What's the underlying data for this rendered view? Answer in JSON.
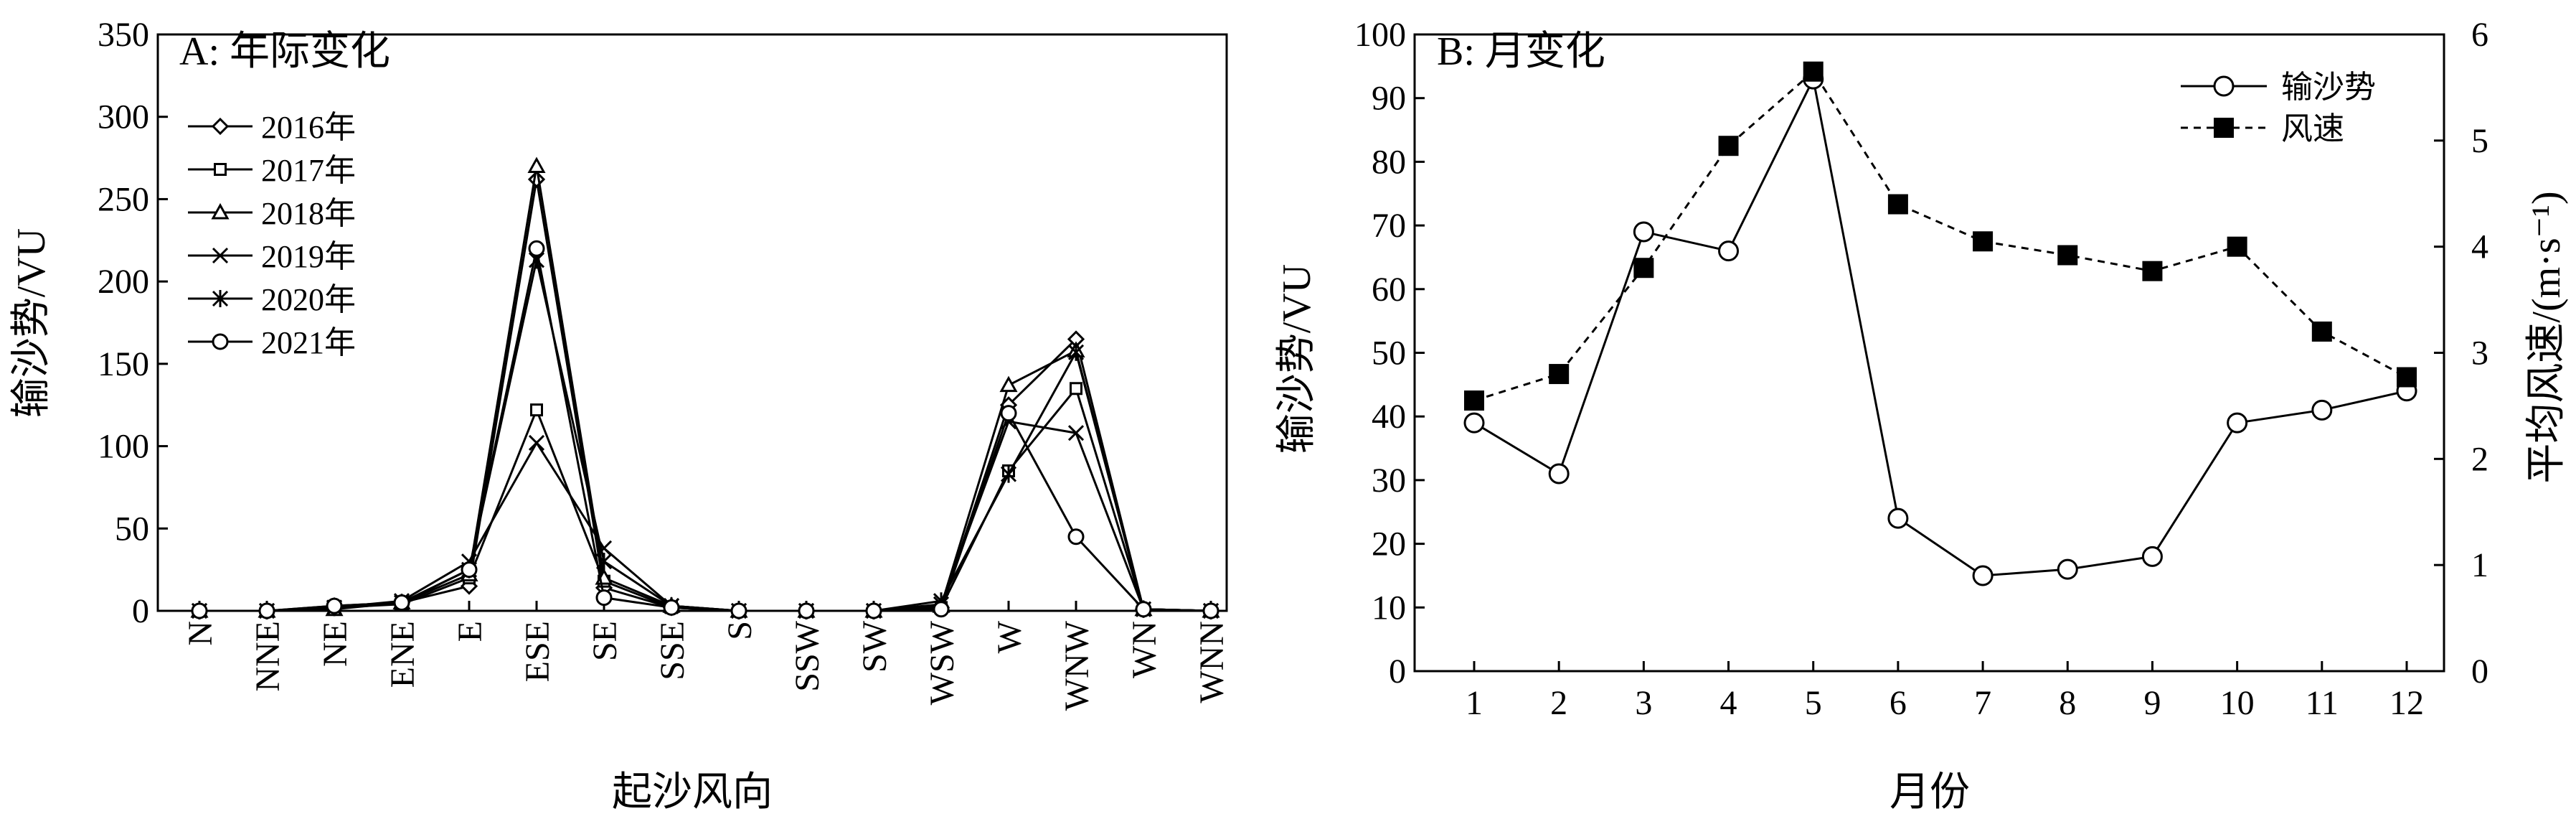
{
  "chart_data": [
    {
      "type": "line",
      "title": "A: 年际变化",
      "xlabel": "起沙风向",
      "ylabel": "输沙势/VU",
      "ylim": [
        0,
        350
      ],
      "yticks": [
        0,
        50,
        100,
        150,
        200,
        250,
        300,
        350
      ],
      "categories": [
        "N",
        "NNE",
        "NE",
        "ENE",
        "E",
        "ESE",
        "SE",
        "SSE",
        "S",
        "SSW",
        "SW",
        "WSW",
        "W",
        "WNW",
        "WN",
        "WNN"
      ],
      "legend_position": "top-left",
      "series": [
        {
          "name": "2016年",
          "marker": "diamond",
          "values": [
            0,
            0,
            3,
            5,
            15,
            262,
            14,
            2,
            0,
            0,
            0,
            2,
            125,
            165,
            1,
            0
          ]
        },
        {
          "name": "2017年",
          "marker": "square",
          "values": [
            0,
            0,
            2,
            4,
            20,
            122,
            18,
            2,
            0,
            0,
            0,
            2,
            85,
            135,
            1,
            0
          ]
        },
        {
          "name": "2018年",
          "marker": "triangle",
          "values": [
            0,
            0,
            1,
            5,
            22,
            270,
            20,
            3,
            0,
            0,
            0,
            3,
            137,
            158,
            1,
            0
          ]
        },
        {
          "name": "2019年",
          "marker": "x",
          "values": [
            0,
            0,
            2,
            6,
            30,
            102,
            38,
            3,
            0,
            0,
            0,
            4,
            115,
            108,
            1,
            0
          ]
        },
        {
          "name": "2020年",
          "marker": "asterisk",
          "values": [
            0,
            0,
            2,
            5,
            25,
            213,
            30,
            3,
            0,
            0,
            0,
            6,
            83,
            157,
            1,
            0
          ]
        },
        {
          "name": "2021年",
          "marker": "circle",
          "values": [
            0,
            0,
            3,
            5,
            25,
            220,
            8,
            2,
            0,
            0,
            0,
            1,
            120,
            45,
            1,
            0
          ]
        }
      ]
    },
    {
      "type": "line",
      "title": "B: 月变化",
      "xlabel": "月份",
      "ylabel": "输沙势/VU",
      "y2label": "平均风速/(m·s⁻¹)",
      "ylim": [
        0,
        100
      ],
      "yticks": [
        0,
        10,
        20,
        30,
        40,
        50,
        60,
        70,
        80,
        90,
        100
      ],
      "y2lim": [
        0,
        6
      ],
      "y2ticks": [
        0,
        1,
        2,
        3,
        4,
        5,
        6
      ],
      "categories": [
        "1",
        "2",
        "3",
        "4",
        "5",
        "6",
        "7",
        "8",
        "9",
        "10",
        "11",
        "12"
      ],
      "legend_position": "top-right",
      "series": [
        {
          "name": "输沙势",
          "axis": "left",
          "marker": "circle",
          "line": "solid",
          "values": [
            39,
            31,
            69,
            66,
            93,
            24,
            15,
            16,
            18,
            39,
            41,
            44
          ]
        },
        {
          "name": "风速",
          "axis": "right",
          "marker": "square-filled",
          "line": "dashed",
          "values": [
            2.55,
            2.8,
            3.8,
            4.95,
            5.65,
            4.4,
            4.05,
            3.92,
            3.77,
            4.0,
            3.2,
            2.77
          ]
        }
      ]
    }
  ]
}
